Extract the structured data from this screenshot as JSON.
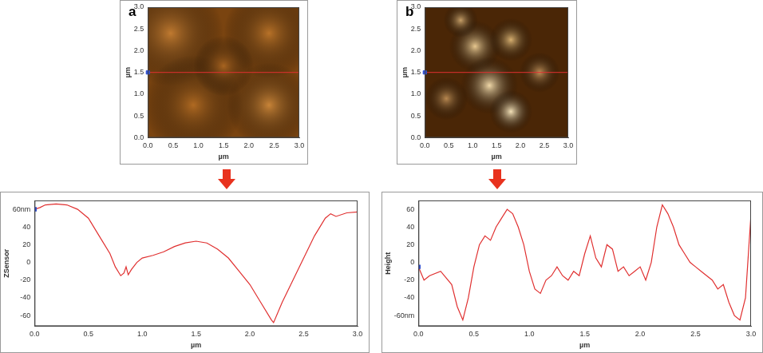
{
  "chart_data": [
    {
      "type": "image",
      "panel": "a",
      "x_label": "µm",
      "y_label": "µm",
      "xlim": [
        0,
        3
      ],
      "ylim": [
        0,
        3
      ],
      "xticks": [
        {
          "value": 0,
          "label": "0.0"
        },
        0.5,
        {
          "value": 1,
          "label": "1.0"
        },
        1.5,
        {
          "value": 2,
          "label": "2.0"
        },
        2.5,
        {
          "value": 3,
          "label": "3.0"
        }
      ],
      "yticks": [
        {
          "value": 0,
          "label": "0.0"
        },
        0.5,
        {
          "value": 1,
          "label": "1.0"
        },
        1.5,
        {
          "value": 2,
          "label": "2.0"
        },
        2.5,
        {
          "value": 3,
          "label": "3.0"
        }
      ],
      "scan_line_y": 1.5,
      "grid": false
    },
    {
      "type": "image",
      "panel": "b",
      "x_label": "µm",
      "y_label": "µm",
      "xlim": [
        0,
        3
      ],
      "ylim": [
        0,
        3
      ],
      "xticks": [
        {
          "value": 0,
          "label": "0.0"
        },
        0.5,
        {
          "value": 1,
          "label": "1.0"
        },
        1.5,
        {
          "value": 2,
          "label": "2.0"
        },
        2.5,
        {
          "value": 3,
          "label": "3.0"
        }
      ],
      "yticks": [
        {
          "value": 0,
          "label": "0.0"
        },
        0.5,
        {
          "value": 1,
          "label": "1.0"
        },
        1.5,
        {
          "value": 2,
          "label": "2.0"
        },
        2.5,
        {
          "value": 3,
          "label": "3.0"
        }
      ],
      "scan_line_y": 1.5,
      "grid": false
    },
    {
      "type": "line",
      "x_label": "µm",
      "y_label": "ZSensor",
      "color": "#e03030",
      "x": [
        0,
        0.05,
        0.1,
        0.2,
        0.3,
        0.4,
        0.5,
        0.6,
        0.7,
        0.75,
        0.8,
        0.83,
        0.85,
        0.87,
        0.9,
        0.95,
        1.0,
        1.1,
        1.2,
        1.3,
        1.4,
        1.5,
        1.6,
        1.7,
        1.8,
        1.9,
        2.0,
        2.1,
        2.2,
        2.22,
        2.3,
        2.4,
        2.5,
        2.6,
        2.7,
        2.75,
        2.8,
        2.9,
        3.0
      ],
      "values": [
        60,
        62,
        65,
        66,
        65,
        60,
        50,
        30,
        10,
        -5,
        -15,
        -12,
        -5,
        -14,
        -8,
        0,
        5,
        8,
        12,
        18,
        22,
        24,
        22,
        15,
        5,
        -10,
        -25,
        -45,
        -65,
        -68,
        -45,
        -20,
        5,
        30,
        50,
        55,
        52,
        56,
        57
      ],
      "xlim": [
        0,
        3
      ],
      "ylim": [
        -72,
        70
      ],
      "xticks": [
        {
          "value": 0,
          "label": "0.0"
        },
        0.5,
        {
          "value": 1,
          "label": "1.0"
        },
        1.5,
        {
          "value": 2,
          "label": "2.0"
        },
        2.5,
        {
          "value": 3,
          "label": "3.0"
        }
      ],
      "yticks": [
        -60,
        -40,
        -20,
        0,
        20,
        40,
        {
          "value": 60,
          "label": "60nm"
        }
      ],
      "grid": false
    },
    {
      "type": "line",
      "x_label": "µm",
      "y_label": "Height",
      "color": "#e03030",
      "x": [
        0,
        0.05,
        0.1,
        0.2,
        0.3,
        0.35,
        0.4,
        0.45,
        0.5,
        0.55,
        0.6,
        0.65,
        0.7,
        0.75,
        0.8,
        0.85,
        0.9,
        0.95,
        1.0,
        1.05,
        1.1,
        1.15,
        1.2,
        1.25,
        1.3,
        1.35,
        1.4,
        1.45,
        1.5,
        1.55,
        1.6,
        1.65,
        1.7,
        1.75,
        1.8,
        1.85,
        1.9,
        1.95,
        2.0,
        2.05,
        2.1,
        2.15,
        2.2,
        2.25,
        2.3,
        2.35,
        2.4,
        2.45,
        2.5,
        2.55,
        2.6,
        2.65,
        2.7,
        2.75,
        2.8,
        2.85,
        2.9,
        2.95,
        3.0
      ],
      "values": [
        -5,
        -20,
        -15,
        -10,
        -25,
        -50,
        -65,
        -40,
        -5,
        20,
        30,
        25,
        40,
        50,
        60,
        55,
        40,
        20,
        -10,
        -30,
        -35,
        -20,
        -15,
        -5,
        -15,
        -20,
        -10,
        -15,
        10,
        30,
        5,
        -5,
        20,
        15,
        -10,
        -5,
        -15,
        -10,
        -5,
        -20,
        0,
        40,
        65,
        55,
        40,
        20,
        10,
        0,
        -5,
        -10,
        -15,
        -20,
        -30,
        -25,
        -45,
        -60,
        -65,
        -40,
        55
      ],
      "xlim": [
        0,
        3
      ],
      "ylim": [
        -72,
        70
      ],
      "xticks": [
        {
          "value": 0,
          "label": "0.0"
        },
        0.5,
        {
          "value": 1,
          "label": "1.0"
        },
        1.5,
        {
          "value": 2,
          "label": "2.0"
        },
        2.5,
        {
          "value": 3,
          "label": "3.0"
        }
      ],
      "yticks": [
        {
          "value": -60,
          "label": "-60nm"
        },
        -40,
        -20,
        0,
        20,
        40,
        60
      ],
      "grid": false
    }
  ]
}
